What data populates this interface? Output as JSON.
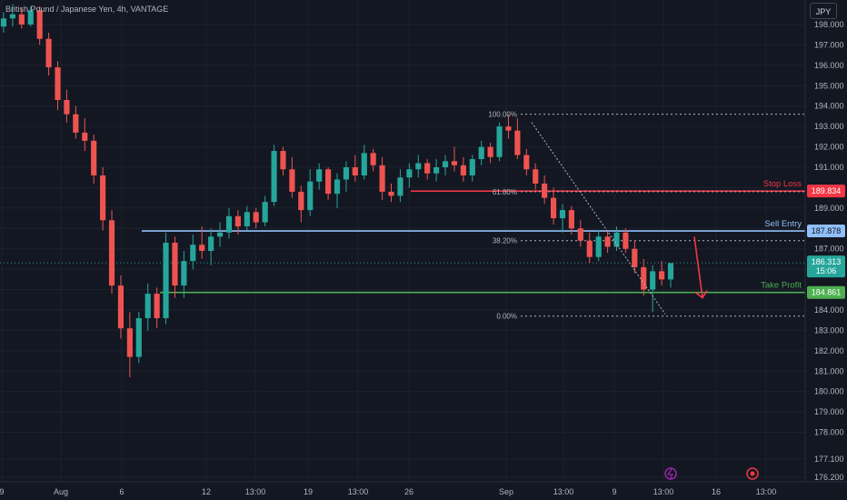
{
  "header": {
    "title": "British Pound / Japanese Yen, 4h, VANTAGE",
    "currency_button": "JPY"
  },
  "colors": {
    "background": "#131722",
    "up": "#26a69a",
    "down": "#ef5350",
    "stop": "#f23645",
    "entry": "#90bff9",
    "take": "#4caf50",
    "grid": "#1e222d",
    "axis_text": "#b2b5be"
  },
  "chart_data": {
    "type": "candlestick",
    "title": "British Pound / Japanese Yen, 4h, VANTAGE",
    "xlabel": "",
    "ylabel": "",
    "ylim": [
      175.8,
      199.0
    ],
    "y_ticks": [
      "198.000",
      "197.000",
      "196.000",
      "195.000",
      "194.000",
      "193.000",
      "192.000",
      "191.000",
      "190.000",
      "189.000",
      "188.000",
      "187.000",
      "186.000",
      "185.000",
      "184.000",
      "183.000",
      "182.000",
      "181.000",
      "180.000",
      "179.000",
      "178.000",
      "177.100",
      "176.200"
    ],
    "x_ticks": [
      "9",
      "Aug",
      "6",
      "12",
      "13:00",
      "19",
      "13:00",
      "26",
      "Sep",
      "13:00",
      "9",
      "13:00",
      "16",
      "13:00"
    ],
    "x_tick_positions": [
      1,
      6,
      14,
      24,
      29,
      35,
      41,
      46,
      58,
      64,
      70,
      76,
      82,
      87
    ],
    "n_bars": 97,
    "candles": [
      [
        197.9,
        198.6,
        197.6,
        198.3
      ],
      [
        198.3,
        199.0,
        197.9,
        198.5
      ],
      [
        198.5,
        198.8,
        197.8,
        198.0
      ],
      [
        198.0,
        198.9,
        197.9,
        198.7
      ],
      [
        198.7,
        198.9,
        197.0,
        197.3
      ],
      [
        197.3,
        197.6,
        195.5,
        195.9
      ],
      [
        195.9,
        196.2,
        193.8,
        194.3
      ],
      [
        194.3,
        194.8,
        193.2,
        193.6
      ],
      [
        193.6,
        194.0,
        192.4,
        192.7
      ],
      [
        192.7,
        193.4,
        191.8,
        192.3
      ],
      [
        192.3,
        192.6,
        190.2,
        190.6
      ],
      [
        190.6,
        191.0,
        187.9,
        188.4
      ],
      [
        188.4,
        188.9,
        184.8,
        185.2
      ],
      [
        185.2,
        185.7,
        182.6,
        183.1
      ],
      [
        183.1,
        183.9,
        180.7,
        181.7
      ],
      [
        181.7,
        183.9,
        181.4,
        183.6
      ],
      [
        183.6,
        185.3,
        183.0,
        184.8
      ],
      [
        184.8,
        185.1,
        183.1,
        183.6
      ],
      [
        183.6,
        187.8,
        183.3,
        187.3
      ],
      [
        187.3,
        187.6,
        184.6,
        185.2
      ],
      [
        185.2,
        186.9,
        184.6,
        186.4
      ],
      [
        186.4,
        187.7,
        186.0,
        187.2
      ],
      [
        187.2,
        188.1,
        186.5,
        186.9
      ],
      [
        186.9,
        188.0,
        186.2,
        187.6
      ],
      [
        187.6,
        188.3,
        187.1,
        187.8
      ],
      [
        187.8,
        189.0,
        187.5,
        188.6
      ],
      [
        188.6,
        188.9,
        187.7,
        188.1
      ],
      [
        188.1,
        189.1,
        187.9,
        188.8
      ],
      [
        188.8,
        189.0,
        188.0,
        188.3
      ],
      [
        188.3,
        189.6,
        188.1,
        189.3
      ],
      [
        189.3,
        192.1,
        189.1,
        191.8
      ],
      [
        191.8,
        192.0,
        190.6,
        190.9
      ],
      [
        190.9,
        191.5,
        189.5,
        189.8
      ],
      [
        189.8,
        190.1,
        188.3,
        188.9
      ],
      [
        188.9,
        190.9,
        188.6,
        190.3
      ],
      [
        190.3,
        191.2,
        189.9,
        190.9
      ],
      [
        190.9,
        191.0,
        189.4,
        189.7
      ],
      [
        189.7,
        190.7,
        189.0,
        190.4
      ],
      [
        190.4,
        191.3,
        189.8,
        191.0
      ],
      [
        191.0,
        191.6,
        190.3,
        190.6
      ],
      [
        190.6,
        192.1,
        190.4,
        191.7
      ],
      [
        191.7,
        191.9,
        190.8,
        191.1
      ],
      [
        191.1,
        191.5,
        189.4,
        189.8
      ],
      [
        189.8,
        190.2,
        189.3,
        189.6
      ],
      [
        189.6,
        190.9,
        189.3,
        190.5
      ],
      [
        190.5,
        191.2,
        190.0,
        190.9
      ],
      [
        190.9,
        191.6,
        190.5,
        191.2
      ],
      [
        191.2,
        191.4,
        190.4,
        190.7
      ],
      [
        190.7,
        191.4,
        190.3,
        191.0
      ],
      [
        191.0,
        191.6,
        190.6,
        191.3
      ],
      [
        191.3,
        192.0,
        190.8,
        191.1
      ],
      [
        191.1,
        191.5,
        190.3,
        190.6
      ],
      [
        190.6,
        191.6,
        190.3,
        191.4
      ],
      [
        191.4,
        192.3,
        191.1,
        192.0
      ],
      [
        192.0,
        192.2,
        191.2,
        191.5
      ],
      [
        191.5,
        193.2,
        191.3,
        193.0
      ],
      [
        193.0,
        193.6,
        192.4,
        192.8
      ],
      [
        192.8,
        193.4,
        191.4,
        191.6
      ],
      [
        191.6,
        191.9,
        190.6,
        190.9
      ],
      [
        190.9,
        191.2,
        189.9,
        190.2
      ],
      [
        190.2,
        190.6,
        189.2,
        189.5
      ],
      [
        189.5,
        190.0,
        188.2,
        188.5
      ],
      [
        188.5,
        189.2,
        187.8,
        188.9
      ],
      [
        188.9,
        189.1,
        187.7,
        188.0
      ],
      [
        188.0,
        188.4,
        187.1,
        187.4
      ],
      [
        187.4,
        187.8,
        186.3,
        186.6
      ],
      [
        186.6,
        187.9,
        186.4,
        187.6
      ],
      [
        187.6,
        187.9,
        186.8,
        187.1
      ],
      [
        187.1,
        188.1,
        186.9,
        187.8
      ],
      [
        187.8,
        188.0,
        186.8,
        187.0
      ],
      [
        187.0,
        187.4,
        185.8,
        186.1
      ],
      [
        186.1,
        186.5,
        184.7,
        185.0
      ],
      [
        185.0,
        186.2,
        183.9,
        185.9
      ],
      [
        185.9,
        186.4,
        185.2,
        185.5
      ],
      [
        185.5,
        186.3,
        185.1,
        186.3
      ]
    ],
    "levels": [
      {
        "name": "Stop Loss",
        "value": 189.834,
        "label": "189.834"
      },
      {
        "name": "Sell Entry",
        "value": 187.878,
        "label": "187.878"
      },
      {
        "name": "Take Profit",
        "value": 184.861,
        "label": "184.861"
      }
    ],
    "current_price": {
      "value": 186.313,
      "label": "186.313",
      "countdown": "15:06"
    },
    "fibonacci": {
      "high": 193.6,
      "low": 183.7,
      "start_bar": 78,
      "end_bar": 122,
      "levels": [
        {
          "label": "100.00%",
          "value": 193.6
        },
        {
          "label": "61.80%",
          "value": 189.8
        },
        {
          "label": "38.20%",
          "value": 187.4
        },
        {
          "label": "0.00%",
          "value": 183.7
        }
      ]
    },
    "trend_line": {
      "from": [
        78,
        193.4
      ],
      "to": [
        102,
        183.8
      ]
    },
    "sell_arrow": {
      "from": [
        107,
        187.6
      ],
      "to": [
        109,
        184.6
      ]
    },
    "grid": true,
    "legend": "none"
  },
  "labels": {
    "stop_loss": "Stop Loss",
    "sell_entry": "Sell Entry",
    "take_profit": "Take Profit"
  }
}
